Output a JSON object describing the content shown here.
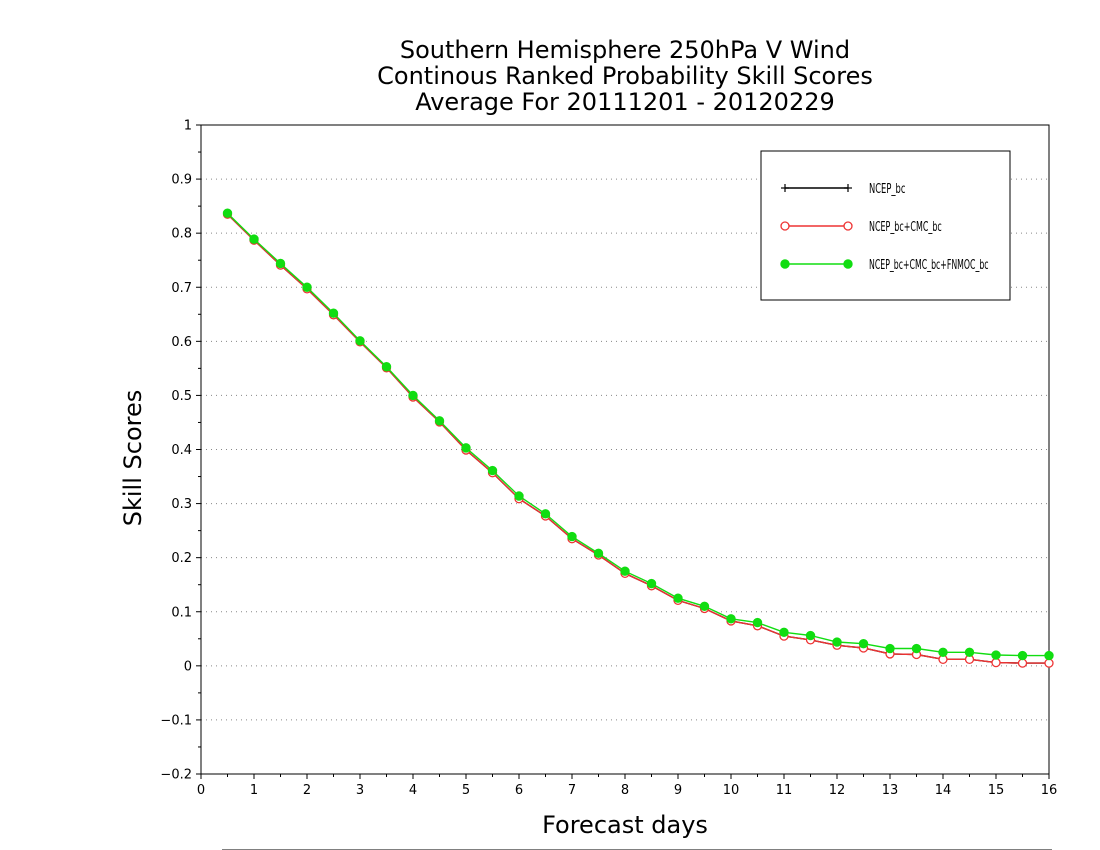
{
  "chart_data": {
    "type": "line",
    "title": [
      "Southern Hemisphere 250hPa V Wind",
      "Continous Ranked Probability Skill Scores",
      "Average For 20111201 - 20120229"
    ],
    "xlabel": "Forecast days",
    "ylabel": "Skill Scores",
    "xlim": [
      0,
      16
    ],
    "ylim": [
      -0.2,
      1
    ],
    "xticks": [
      0,
      1,
      2,
      3,
      4,
      5,
      6,
      7,
      8,
      9,
      10,
      11,
      12,
      13,
      14,
      15,
      16
    ],
    "yticks": [
      -0.2,
      -0.1,
      0,
      0.1,
      0.2,
      0.3,
      0.4,
      0.5,
      0.6,
      0.7,
      0.8,
      0.9,
      1
    ],
    "ytick_labels": [
      "−0.2",
      "−0.1",
      "0",
      "0.1",
      "0.2",
      "0.3",
      "0.4",
      "0.5",
      "0.6",
      "0.7",
      "0.8",
      "0.9",
      "1"
    ],
    "grid": "horizontal dotted",
    "legend_position": "top-right",
    "x": [
      0.5,
      1,
      1.5,
      2,
      2.5,
      3,
      3.5,
      4,
      4.5,
      5,
      5.5,
      6,
      6.5,
      7,
      7.5,
      8,
      8.5,
      9,
      9.5,
      10,
      10.5,
      11,
      11.5,
      12,
      12.5,
      13,
      13.5,
      14,
      14.5,
      15,
      15.5,
      16
    ],
    "series": [
      {
        "name": "NCEP_bc",
        "color": "#000000",
        "marker": "plus",
        "values": [
          0.835,
          0.787,
          0.741,
          0.697,
          0.649,
          0.599,
          0.551,
          0.497,
          0.451,
          0.399,
          0.357,
          0.309,
          0.277,
          0.235,
          0.205,
          0.171,
          0.148,
          0.121,
          0.106,
          0.083,
          0.074,
          0.055,
          0.048,
          0.038,
          0.033,
          0.022,
          0.021,
          0.012,
          0.012,
          0.006,
          0.005,
          0.005
        ]
      },
      {
        "name": "NCEP_bc+CMC_bc",
        "color": "#ee3333",
        "marker": "open-circle",
        "values": [
          0.835,
          0.787,
          0.741,
          0.697,
          0.649,
          0.599,
          0.551,
          0.497,
          0.451,
          0.399,
          0.357,
          0.309,
          0.277,
          0.235,
          0.205,
          0.171,
          0.148,
          0.121,
          0.106,
          0.083,
          0.074,
          0.055,
          0.048,
          0.038,
          0.033,
          0.022,
          0.021,
          0.012,
          0.012,
          0.006,
          0.005,
          0.005
        ]
      },
      {
        "name": "NCEP_bc+CMC_bc+FNMOC_bc",
        "color": "#11dd11",
        "marker": "filled-circle",
        "values": [
          0.837,
          0.789,
          0.744,
          0.7,
          0.652,
          0.601,
          0.553,
          0.5,
          0.453,
          0.403,
          0.361,
          0.314,
          0.281,
          0.239,
          0.208,
          0.175,
          0.152,
          0.125,
          0.11,
          0.087,
          0.08,
          0.062,
          0.056,
          0.044,
          0.041,
          0.032,
          0.032,
          0.025,
          0.025,
          0.02,
          0.019,
          0.019
        ]
      }
    ]
  }
}
